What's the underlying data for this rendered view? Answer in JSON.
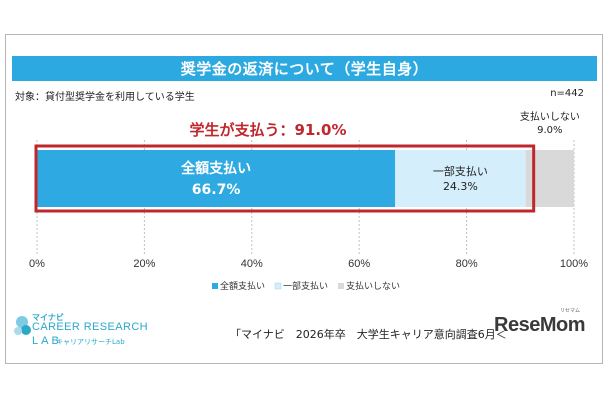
{
  "title": "奨学金の返済について（学生自身）",
  "subject": "対象：貸付型奨学金を利用している学生",
  "n_label": "n=442",
  "highlight_label": "学生が支払う：91.0%",
  "source": "「マイナビ　2026年卒　大学生キャリア意向調査6月＜",
  "watermark": "ReseMom",
  "watermark_ruby": "リセマム",
  "logo": {
    "brand": "マイナビ",
    "line1": "CAREER RESEARCH",
    "line2": "LAB",
    "line2_sub": "キャリアリサーチLab"
  },
  "colors": {
    "full": "#2fa9e1",
    "partial": "#d4eefb",
    "none": "#d9d9d9",
    "highlight": "#c0272d",
    "title_bg": "#2da9e1"
  },
  "chart_data": {
    "type": "bar",
    "orientation": "horizontal-stacked-100",
    "series": [
      {
        "name": "全額支払い",
        "value": 66.7,
        "label_line1": "全額支払い",
        "label_line2": "66.7%"
      },
      {
        "name": "一部支払い",
        "value": 24.3,
        "label_line1": "一部支払い",
        "label_line2": "24.3%"
      },
      {
        "name": "支払いしない",
        "value": 9.0,
        "label_line1": "支払いしない",
        "label_line2": "9.0%"
      }
    ],
    "xlim": [
      0,
      100
    ],
    "xticks": [
      "0%",
      "20%",
      "40%",
      "60%",
      "80%",
      "100%"
    ],
    "grid": true,
    "legend_position": "bottom"
  }
}
